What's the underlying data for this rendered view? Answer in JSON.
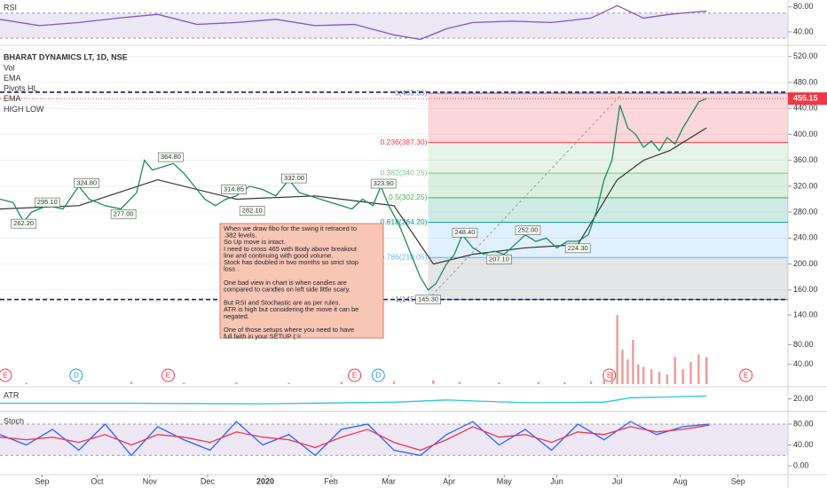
{
  "chart_data": [
    {
      "type": "line",
      "title": "RSI",
      "xlim": [
        0,
        300
      ],
      "ylim": [
        20,
        91
      ],
      "yticks": [
        {
          "value": 80,
          "label": "80.00"
        },
        {
          "value": 40,
          "label": "40.00"
        }
      ],
      "band": [
        30,
        70
      ],
      "band_color": "#7e57c2",
      "x": [
        0,
        15,
        30,
        45,
        60,
        75,
        90,
        105,
        120,
        135,
        150,
        160,
        170,
        180,
        195,
        210,
        225,
        235,
        245,
        255,
        265,
        269
      ],
      "series": [
        {
          "color": "#7e57c2",
          "values": [
            60,
            50,
            55,
            62,
            68,
            52,
            55,
            60,
            50,
            52,
            35,
            28,
            45,
            55,
            57,
            55,
            62,
            82,
            62,
            68,
            72,
            73
          ]
        }
      ]
    },
    {
      "type": "line",
      "title": "BHARAT DYNAMICS LT, 1D, NSE",
      "indicators": [
        "Vol",
        "EMA",
        "Pivots HL",
        "EMA",
        "HIGH LOW"
      ],
      "xlim": [
        0,
        300
      ],
      "ylim": [
        12,
        536
      ],
      "grid": true,
      "yticks": [
        {
          "value": 520,
          "label": "520.00"
        },
        {
          "value": 480,
          "label": "480.00"
        },
        {
          "value": 440,
          "label": "440.00"
        },
        {
          "value": 400,
          "label": "400.00"
        },
        {
          "value": 360,
          "label": "360.00"
        },
        {
          "value": 320,
          "label": "320.00"
        },
        {
          "value": 280,
          "label": "280.00"
        },
        {
          "value": 240,
          "label": "240.00"
        },
        {
          "value": 200,
          "label": "200.00"
        },
        {
          "value": 160,
          "label": "160.00"
        }
      ],
      "x": [
        0,
        5,
        9,
        12,
        18,
        24,
        30,
        34,
        40,
        46,
        52,
        55,
        58,
        62,
        66,
        70,
        74,
        78,
        82,
        86,
        90,
        95,
        100,
        105,
        110,
        114,
        118,
        122,
        126,
        130,
        134,
        138,
        142,
        145,
        148,
        152,
        156,
        160,
        163,
        166,
        170,
        173,
        176,
        180,
        184,
        188,
        192,
        196,
        200,
        204,
        208,
        212,
        216,
        220,
        224,
        227,
        230,
        233,
        236,
        239,
        242,
        245,
        248,
        251,
        254,
        257,
        260,
        263,
        266,
        269
      ],
      "series": [
        {
          "color": "#1e8a5f",
          "values": [
            300,
            295,
            265,
            280,
            290,
            285,
            320,
            300,
            290,
            285,
            310,
            360,
            345,
            350,
            355,
            340,
            320,
            300,
            290,
            300,
            305,
            320,
            315,
            305,
            330,
            310,
            305,
            300,
            295,
            290,
            285,
            300,
            290,
            320,
            290,
            260,
            220,
            180,
            160,
            170,
            200,
            215,
            245,
            225,
            215,
            220,
            215,
            230,
            245,
            235,
            240,
            225,
            235,
            235,
            245,
            280,
            330,
            360,
            445,
            410,
            400,
            380,
            390,
            375,
            395,
            385,
            410,
            430,
            450,
            455.15
          ]
        }
      ],
      "ema": {
        "color": "#333333",
        "x": [
          0,
          30,
          60,
          90,
          120,
          150,
          165,
          180,
          200,
          220,
          235,
          245,
          255,
          269
        ],
        "values": [
          285,
          290,
          330,
          300,
          305,
          290,
          200,
          215,
          225,
          230,
          330,
          360,
          375,
          410
        ]
      },
      "fib_start": 163,
      "fib_levels": [
        {
          "value": 463.35,
          "label": "0(463.35)"
        },
        {
          "value": 387.3,
          "label": "0.236(387.30)"
        },
        {
          "value": 340.25,
          "label": "0.382(340.25)"
        },
        {
          "value": 302.25,
          "label": "0.5(302.25)"
        },
        {
          "value": 264.2,
          "label": "0.618(264.20)"
        },
        {
          "value": 210.05,
          "label": "0.786(210.05)"
        },
        {
          "value": 145.3,
          "label": "1(145.30)"
        }
      ],
      "fib_colors": [
        "#787b86",
        "#f23645",
        "#81c784",
        "#4caf50",
        "#089981",
        "#64b5f6",
        "#787b86"
      ],
      "trend_line": {
        "x": [
          163,
          237
        ],
        "values": [
          145.3,
          463.35
        ]
      },
      "hlines": [
        465,
        145.3
      ],
      "hline_color": "#1a1a6e",
      "last_price": {
        "value": 455.15,
        "label": "455.15",
        "color": "#f23645"
      },
      "pivots": [
        {
          "x": 9,
          "value": 262.2,
          "label": "262.20"
        },
        {
          "x": 18,
          "value": 295.1,
          "label": "295.10"
        },
        {
          "x": 33,
          "value": 324.8,
          "label": "324.80"
        },
        {
          "x": 47,
          "value": 277,
          "label": "277.00"
        },
        {
          "x": 65,
          "value": 364.8,
          "label": "364.80"
        },
        {
          "x": 89,
          "value": 314.85,
          "label": "314.85"
        },
        {
          "x": 96,
          "value": 282.1,
          "label": "282.10"
        },
        {
          "x": 112,
          "value": 332,
          "label": "332.00"
        },
        {
          "x": 146,
          "value": 323.9,
          "label": "323.90"
        },
        {
          "x": 177,
          "value": 248.4,
          "label": "248.40"
        },
        {
          "x": 190,
          "value": 207.1,
          "label": "207.10"
        },
        {
          "x": 201,
          "value": 252,
          "label": "252.00"
        },
        {
          "x": 220,
          "value": 224.3,
          "label": "224.30"
        },
        {
          "x": 163,
          "value": 145.3,
          "label": "145.30"
        }
      ],
      "events": [
        {
          "x": 2,
          "label": "E",
          "color": "#f23645"
        },
        {
          "x": 29,
          "label": "D",
          "color": "#2196f3"
        },
        {
          "x": 64,
          "label": "E",
          "color": "#f23645"
        },
        {
          "x": 135,
          "label": "E",
          "color": "#f23645"
        },
        {
          "x": 144,
          "label": "D",
          "color": "#2196f3"
        },
        {
          "x": 232,
          "label": "E",
          "color": "#f23645"
        },
        {
          "x": 284,
          "label": "E",
          "color": "#f23645"
        }
      ],
      "note": [
        [
          "When we draw fibo for the swing it retraced to",
          ".382 levels.",
          "So Up move is intact.",
          "I need to cross 465 with Body above breakout",
          "line and continuing with good volume.",
          "Stock has doubled in two months so strict stop",
          "loss ."
        ],
        [
          "One bad view in chart is when candles are",
          "compared to candles on left side little scary."
        ],
        [
          "But RSI and Stochastic are as per rules.",
          "ATR is high but considering the move it can be",
          "negated."
        ],
        [
          "One of those setups where you need to have",
          "full faith in your SETUP (:="
        ]
      ]
    },
    {
      "type": "bar",
      "xlim": [
        0,
        300
      ],
      "ylim": [
        0,
        140
      ],
      "color": "#ef9a9a",
      "yticks": [
        {
          "value": 140,
          "label": "140.00"
        },
        {
          "value": 80,
          "label": "80.00"
        },
        {
          "value": 40,
          "label": "40.00"
        }
      ],
      "x": [
        10,
        30,
        50,
        70,
        90,
        110,
        130,
        150,
        165,
        175,
        190,
        205,
        215,
        225,
        230,
        233,
        235,
        237,
        239,
        241,
        243,
        245,
        248,
        251,
        254,
        257,
        260,
        263,
        266,
        269
      ],
      "values": [
        3,
        4,
        5,
        3,
        4,
        3,
        5,
        6,
        8,
        5,
        4,
        5,
        4,
        6,
        12,
        25,
        140,
        70,
        50,
        90,
        40,
        35,
        30,
        25,
        20,
        55,
        30,
        45,
        60,
        55
      ]
    },
    {
      "type": "line",
      "title": "ATR",
      "xlim": [
        0,
        300
      ],
      "ylim": [
        0,
        40
      ],
      "yticks": [
        {
          "value": 20,
          "label": "20.00"
        }
      ],
      "x": [
        0,
        50,
        100,
        150,
        170,
        200,
        230,
        240,
        269
      ],
      "series": [
        {
          "color": "#26c6da",
          "values": [
            12,
            12,
            11,
            14,
            18,
            13,
            14,
            22,
            25
          ]
        }
      ]
    },
    {
      "type": "line",
      "title": "Stoch",
      "xlim": [
        0,
        300
      ],
      "ylim": [
        0,
        100
      ],
      "band": [
        20,
        80
      ],
      "band_color": "#7e57c2",
      "yticks": [
        {
          "value": 80,
          "label": "80.00"
        },
        {
          "value": 40,
          "label": "40.00"
        },
        {
          "value": 0,
          "label": "0.00"
        }
      ],
      "x": [
        0,
        10,
        20,
        30,
        40,
        50,
        60,
        70,
        80,
        90,
        100,
        110,
        120,
        130,
        140,
        150,
        160,
        170,
        180,
        190,
        200,
        210,
        220,
        230,
        240,
        250,
        260,
        270
      ],
      "series": [
        {
          "color": "#2962ff",
          "values": [
            60,
            40,
            70,
            30,
            80,
            20,
            75,
            50,
            30,
            85,
            40,
            60,
            20,
            70,
            80,
            30,
            20,
            60,
            85,
            40,
            70,
            30,
            80,
            50,
            85,
            60,
            75,
            80
          ]
        },
        {
          "color": "#f23645",
          "values": [
            55,
            50,
            55,
            45,
            60,
            40,
            60,
            55,
            45,
            65,
            55,
            50,
            35,
            55,
            70,
            45,
            30,
            50,
            75,
            55,
            60,
            45,
            65,
            60,
            75,
            65,
            70,
            78
          ]
        }
      ],
      "xticks": [
        {
          "value": 16,
          "label": "Sep"
        },
        {
          "value": 37,
          "label": "Oct"
        },
        {
          "value": 57,
          "label": "Nov"
        },
        {
          "value": 79,
          "label": "Dec"
        },
        {
          "value": 101,
          "label": "2020"
        },
        {
          "value": 126,
          "label": "Feb"
        },
        {
          "value": 148,
          "label": "Mar"
        },
        {
          "value": 171,
          "label": "Apr"
        },
        {
          "value": 192,
          "label": "May"
        },
        {
          "value": 212,
          "label": "Jun"
        },
        {
          "value": 235,
          "label": "Jul"
        },
        {
          "value": 259,
          "label": "Aug"
        },
        {
          "value": 281,
          "label": "Sep"
        }
      ]
    }
  ]
}
